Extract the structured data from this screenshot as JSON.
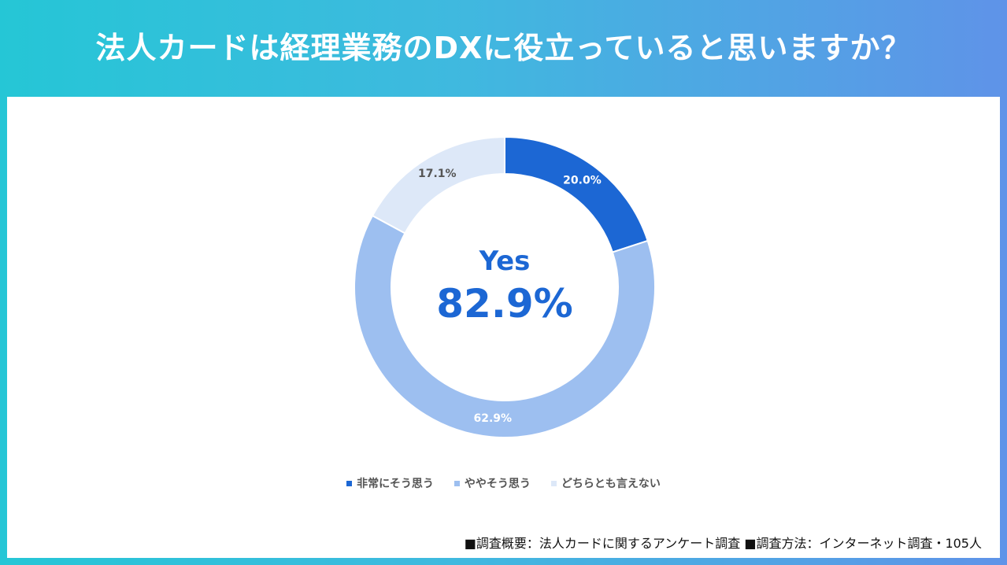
{
  "title": "法人カードは経理業務のDXに役立っていると思いますか？",
  "chart_data": {
    "type": "pie",
    "variant": "donut",
    "categories": [
      "非常にそう思う",
      "ややそう思う",
      "どちらとも言えない"
    ],
    "values": [
      20.0,
      62.9,
      17.1
    ],
    "labels": [
      "20.0%",
      "62.9%",
      "17.1%"
    ],
    "colors": [
      "#1c67d4",
      "#9dbff0",
      "#dde8f8"
    ],
    "label_colors": [
      "#ffffff",
      "#ffffff",
      "#555555"
    ],
    "center_label": "Yes",
    "center_value": "82.9%",
    "center_color": "#1c67d4",
    "legend_position": "bottom"
  },
  "footnote": "■調査概要：法人カードに関するアンケート調査 ■調査方法：インターネット調査・105人"
}
